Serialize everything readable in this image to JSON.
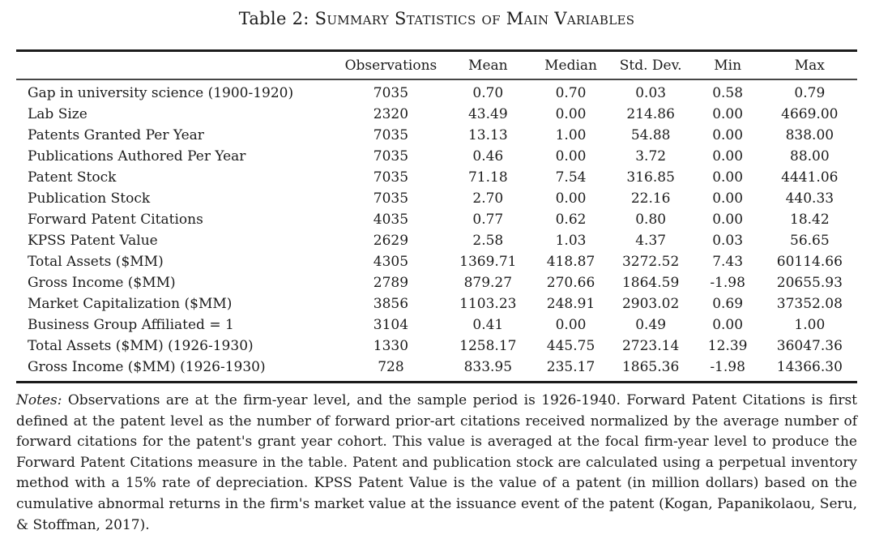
{
  "title": {
    "prefix": "Table 2: ",
    "smallcaps": "Summary Statistics of Main Variables"
  },
  "table": {
    "columns": [
      "",
      "Observations",
      "Mean",
      "Median",
      "Std. Dev.",
      "Min",
      "Max"
    ],
    "rows": [
      {
        "label": "Gap in university science (1900-1920)",
        "values": [
          "7035",
          "0.70",
          "0.70",
          "0.03",
          "0.58",
          "0.79"
        ]
      },
      {
        "label": "Lab Size",
        "values": [
          "2320",
          "43.49",
          "0.00",
          "214.86",
          "0.00",
          "4669.00"
        ]
      },
      {
        "label": "Patents Granted Per Year",
        "values": [
          "7035",
          "13.13",
          "1.00",
          "54.88",
          "0.00",
          "838.00"
        ]
      },
      {
        "label": "Publications Authored Per Year",
        "values": [
          "7035",
          "0.46",
          "0.00",
          "3.72",
          "0.00",
          "88.00"
        ]
      },
      {
        "label": "Patent Stock",
        "values": [
          "7035",
          "71.18",
          "7.54",
          "316.85",
          "0.00",
          "4441.06"
        ]
      },
      {
        "label": "Publication Stock",
        "values": [
          "7035",
          "2.70",
          "0.00",
          "22.16",
          "0.00",
          "440.33"
        ]
      },
      {
        "label": "Forward Patent Citations",
        "values": [
          "4035",
          "0.77",
          "0.62",
          "0.80",
          "0.00",
          "18.42"
        ]
      },
      {
        "label": "KPSS Patent Value",
        "values": [
          "2629",
          "2.58",
          "1.03",
          "4.37",
          "0.03",
          "56.65"
        ]
      },
      {
        "label": "Total Assets ($MM)",
        "values": [
          "4305",
          "1369.71",
          "418.87",
          "3272.52",
          "7.43",
          "60114.66"
        ]
      },
      {
        "label": "Gross Income ($MM)",
        "values": [
          "2789",
          "879.27",
          "270.66",
          "1864.59",
          "-1.98",
          "20655.93"
        ]
      },
      {
        "label": "Market Capitalization ($MM)",
        "values": [
          "3856",
          "1103.23",
          "248.91",
          "2903.02",
          "0.69",
          "37352.08"
        ]
      },
      {
        "label": "Business Group Affiliated = 1",
        "values": [
          "3104",
          "0.41",
          "0.00",
          "0.49",
          "0.00",
          "1.00"
        ]
      },
      {
        "label": "Total Assets ($MM) (1926-1930)",
        "values": [
          "1330",
          "1258.17",
          "445.75",
          "2723.14",
          "12.39",
          "36047.36"
        ]
      },
      {
        "label": "Gross Income ($MM) (1926-1930)",
        "values": [
          "728",
          "833.95",
          "235.17",
          "1865.36",
          "-1.98",
          "14366.30"
        ]
      }
    ]
  },
  "notes": {
    "label": "Notes:",
    "text": "Observations are at the firm-year level, and the sample period is 1926-1940. Forward Patent Citations is first defined at the patent level as the number of forward prior-art citations received normalized by the average number of forward citations for the patent's grant year cohort. This value is averaged at the focal firm-year level to produce the Forward Patent Citations measure in the table. Patent and publication stock are calculated using a perpetual inventory method with a 15% rate of depreciation. KPSS Patent Value is the value of a patent (in million dollars) based on the cumulative abnormal returns in the firm's market value at the issuance event of the patent (Kogan, Papanikolaou, Seru, & Stoffman, 2017)."
  }
}
